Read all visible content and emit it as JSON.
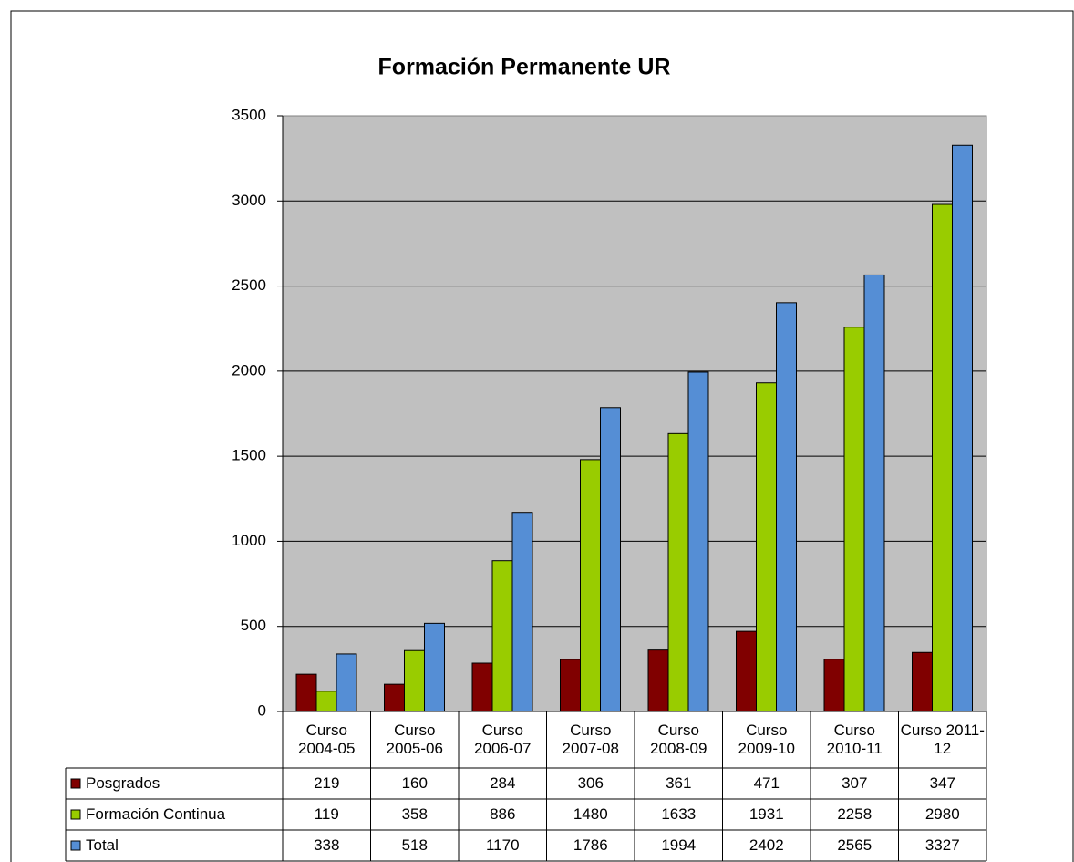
{
  "chart_data": {
    "type": "bar",
    "title": "Formación Permanente UR",
    "categories": [
      "Curso 2004-05",
      "Curso 2005-06",
      "Curso 2006-07",
      "Curso 2007-08",
      "Curso 2008-09",
      "Curso 2009-10",
      "Curso 2010-11",
      "Curso 2011-12"
    ],
    "series": [
      {
        "name": "Posgrados",
        "color": "#800000",
        "values": [
          219,
          160,
          284,
          306,
          361,
          471,
          307,
          347
        ]
      },
      {
        "name": "Formación Continua",
        "color": "#99cc00",
        "values": [
          119,
          358,
          886,
          1480,
          1633,
          1931,
          2258,
          2980
        ]
      },
      {
        "name": "Total",
        "color": "#558ed5",
        "values": [
          338,
          518,
          1170,
          1786,
          1994,
          2402,
          2565,
          3327
        ]
      }
    ],
    "ylim": [
      0,
      3500
    ],
    "yticks": [
      0,
      500,
      1000,
      1500,
      2000,
      2500,
      3000,
      3500
    ],
    "grid": true
  }
}
